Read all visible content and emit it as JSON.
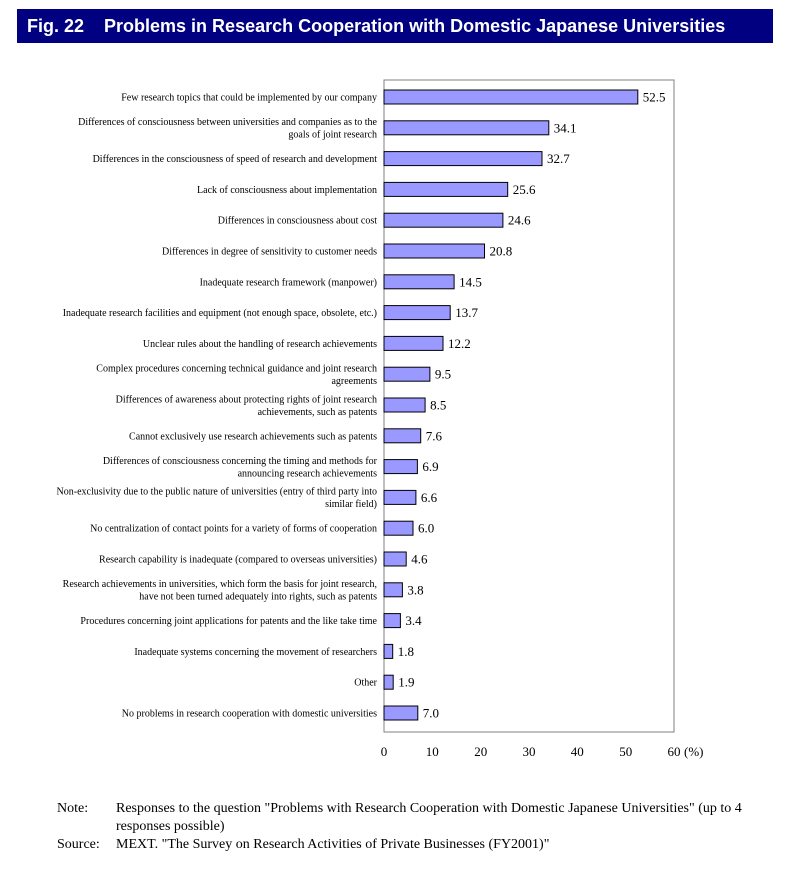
{
  "figure": {
    "number": "Fig. 22",
    "title": "Problems in Research Cooperation with Domestic Japanese Universities"
  },
  "chart_data": {
    "type": "bar",
    "orientation": "horizontal",
    "title": "Problems in Research Cooperation with Domestic Japanese Universities",
    "categories": [
      "Few research topics that could be implemented by our company",
      "Differences of consciousness between universities and companies as to the goals of joint research",
      "Differences in the consciousness of speed of research and development",
      "Lack of consciousness about implementation",
      "Differences in consciousness about cost",
      "Differences in degree of sensitivity to customer needs",
      "Inadequate research framework (manpower)",
      "Inadequate research facilities and equipment (not enough space, obsolete, etc.)",
      "Unclear rules about the handling of research achievements",
      "Complex procedures concerning technical guidance and joint research agreements",
      "Differences of awareness about protecting rights of joint research achievements, such as patents",
      "Cannot exclusively use research achievements such as patents",
      "Differences of consciousness concerning the timing and methods for announcing research achievements",
      "Non-exclusivity due to the public nature of universities (entry of third party into similar field)",
      "No centralization of contact points for a variety of forms of cooperation",
      "Research capability is inadequate (compared to overseas universities)",
      "Research achievements in universities, which form the basis for joint research, have not been turned adequately into rights, such as patents",
      "Procedures concerning joint applications for patents and the like take time",
      "Inadequate systems concerning the movement of researchers",
      "Other",
      "No problems in research cooperation with domestic universities"
    ],
    "category_lines": [
      [
        "Few research topics that could be implemented by our company"
      ],
      [
        "Differences of consciousness between universities and companies as to the",
        "goals of joint research"
      ],
      [
        "Differences in the consciousness of speed of research and development"
      ],
      [
        "Lack of consciousness about implementation"
      ],
      [
        "Differences in consciousness about cost"
      ],
      [
        "Differences in degree of sensitivity to customer needs"
      ],
      [
        "Inadequate research framework (manpower)"
      ],
      [
        "Inadequate research facilities and equipment (not enough space, obsolete, etc.)"
      ],
      [
        "Unclear rules about the handling of research achievements"
      ],
      [
        "Complex procedures concerning technical guidance and joint research",
        "agreements"
      ],
      [
        "Differences of awareness about protecting rights of joint research",
        "achievements, such as patents"
      ],
      [
        "Cannot exclusively use research achievements such as patents"
      ],
      [
        "Differences of consciousness concerning the timing and methods for",
        "announcing research achievements"
      ],
      [
        "Non-exclusivity due to the public nature of universities (entry of third party into",
        "similar field)"
      ],
      [
        "No centralization of contact points for a variety of forms of cooperation"
      ],
      [
        "Research capability is inadequate (compared to overseas universities)"
      ],
      [
        "Research achievements in universities, which form the basis for joint research,",
        "have not been turned adequately into rights, such as patents"
      ],
      [
        "Procedures concerning joint applications for patents and the like take time"
      ],
      [
        "Inadequate systems concerning the movement of researchers"
      ],
      [
        "Other"
      ],
      [
        "No problems in research cooperation with domestic universities"
      ]
    ],
    "values": [
      52.5,
      34.1,
      32.7,
      25.6,
      24.6,
      20.8,
      14.5,
      13.7,
      12.2,
      9.5,
      8.5,
      7.6,
      6.9,
      6.6,
      6.0,
      4.6,
      3.8,
      3.4,
      1.8,
      1.9,
      7.0
    ],
    "value_labels": [
      "52.5",
      "34.1",
      "32.7",
      "25.6",
      "24.6",
      "20.8",
      "14.5",
      "13.7",
      "12.2",
      "9.5",
      "8.5",
      "7.6",
      "6.9",
      "6.6",
      "6.0",
      "4.6",
      "3.8",
      "3.4",
      "1.8",
      "1.9",
      "7.0"
    ],
    "x_ticks": [
      0,
      10,
      20,
      30,
      40,
      50,
      60
    ],
    "x_unit": "(%)",
    "xlim": [
      0,
      60
    ],
    "grid": false,
    "legend": "none",
    "bar_color": "#9999ff",
    "bar_edge_color": "#000000"
  },
  "notes": [
    {
      "key": "Note:",
      "text": "Responses to the question \"Problems with Research Cooperation with Domestic Japanese Universities\" (up to 4 responses possible)"
    },
    {
      "key": "Source:",
      "text": "MEXT. \"The Survey on Research Activities of Private Businesses (FY2001)\""
    }
  ],
  "colors": {
    "title_bg": "#000080",
    "title_text": "#ffffff"
  }
}
